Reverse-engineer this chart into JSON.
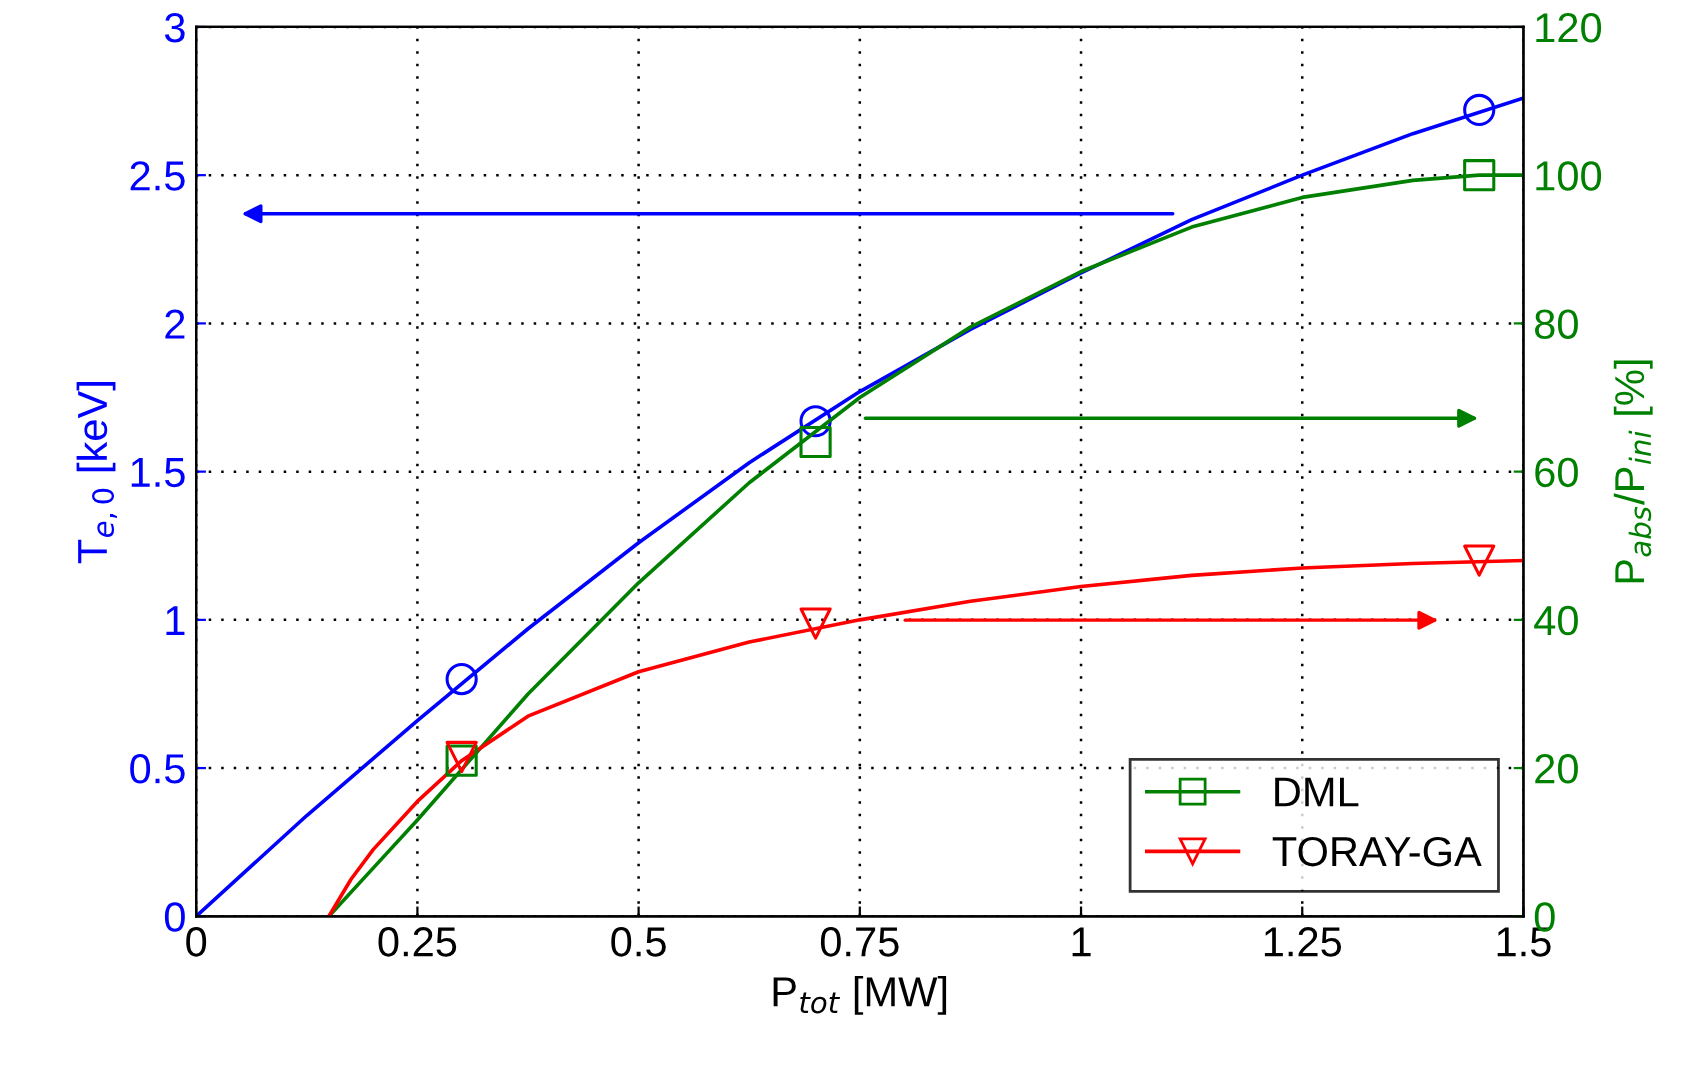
{
  "chart_data": {
    "type": "line",
    "xlabel": "P$_{tot}$ [MW]",
    "ylabel": "T$_{e,0}$ [keV]",
    "y2label": "P$_{abs}$/P$_{ini}$ [%]",
    "xlim": [
      0,
      1.5
    ],
    "xticks": [
      0,
      0.25,
      0.5,
      0.75,
      1,
      1.25,
      1.5
    ],
    "ylim": [
      0,
      3
    ],
    "yticks": [
      0,
      0.5,
      1,
      1.5,
      2,
      2.5,
      3
    ],
    "y2lim": [
      0,
      120
    ],
    "y2ticks": [
      0,
      20,
      40,
      60,
      80,
      100,
      120
    ],
    "grid": true,
    "legend": "bottom right",
    "series": [
      {
        "color": "#0000ff",
        "x": [
          0,
          0.125,
          0.25,
          0.375,
          0.5,
          0.625,
          0.75,
          0.875,
          1,
          1.125,
          1.25,
          1.375,
          1.5
        ],
        "values": [
          0,
          0.34,
          0.66,
          0.97,
          1.26,
          1.53,
          1.77,
          1.98,
          2.17,
          2.35,
          2.5,
          2.64,
          2.76
        ]
      },
      {
        "type": "scatter",
        "marker": "circle",
        "color": "#0000ff",
        "x": [
          0.3,
          0.7,
          1.45
        ],
        "values": [
          0.8,
          1.67,
          2.72
        ]
      },
      {
        "axis": "y2",
        "color": "#008000",
        "x": [
          0.15,
          0.2,
          0.25,
          0.375,
          0.5,
          0.625,
          0.75,
          0.875,
          1,
          1.125,
          1.25,
          1.375,
          1.45,
          1.5
        ],
        "values": [
          0,
          6.5,
          13,
          30,
          45,
          58.5,
          70,
          79.5,
          87,
          93,
          97,
          99.3,
          100,
          100
        ]
      },
      {
        "type": "scatter",
        "marker": "square",
        "axis": "y2",
        "name": "DML",
        "color": "#008000",
        "x": [
          0.3,
          0.7,
          1.45
        ],
        "values": [
          21,
          64,
          100
        ]
      },
      {
        "axis": "y2",
        "color": "#ff0000",
        "x": [
          0.15,
          0.175,
          0.2,
          0.25,
          0.3,
          0.375,
          0.5,
          0.625,
          0.75,
          0.875,
          1,
          1.125,
          1.25,
          1.375,
          1.5
        ],
        "values": [
          0,
          5,
          9,
          15.5,
          21,
          27,
          33,
          37,
          40,
          42.5,
          44.5,
          46,
          47,
          47.6,
          48
        ]
      },
      {
        "type": "scatter",
        "marker": "triangle",
        "axis": "y2",
        "name": "TORAY-GA",
        "color": "#ff0000",
        "x": [
          0.3,
          0.7,
          1.45
        ],
        "values": [
          21.5,
          39.5,
          48
        ]
      }
    ]
  }
}
